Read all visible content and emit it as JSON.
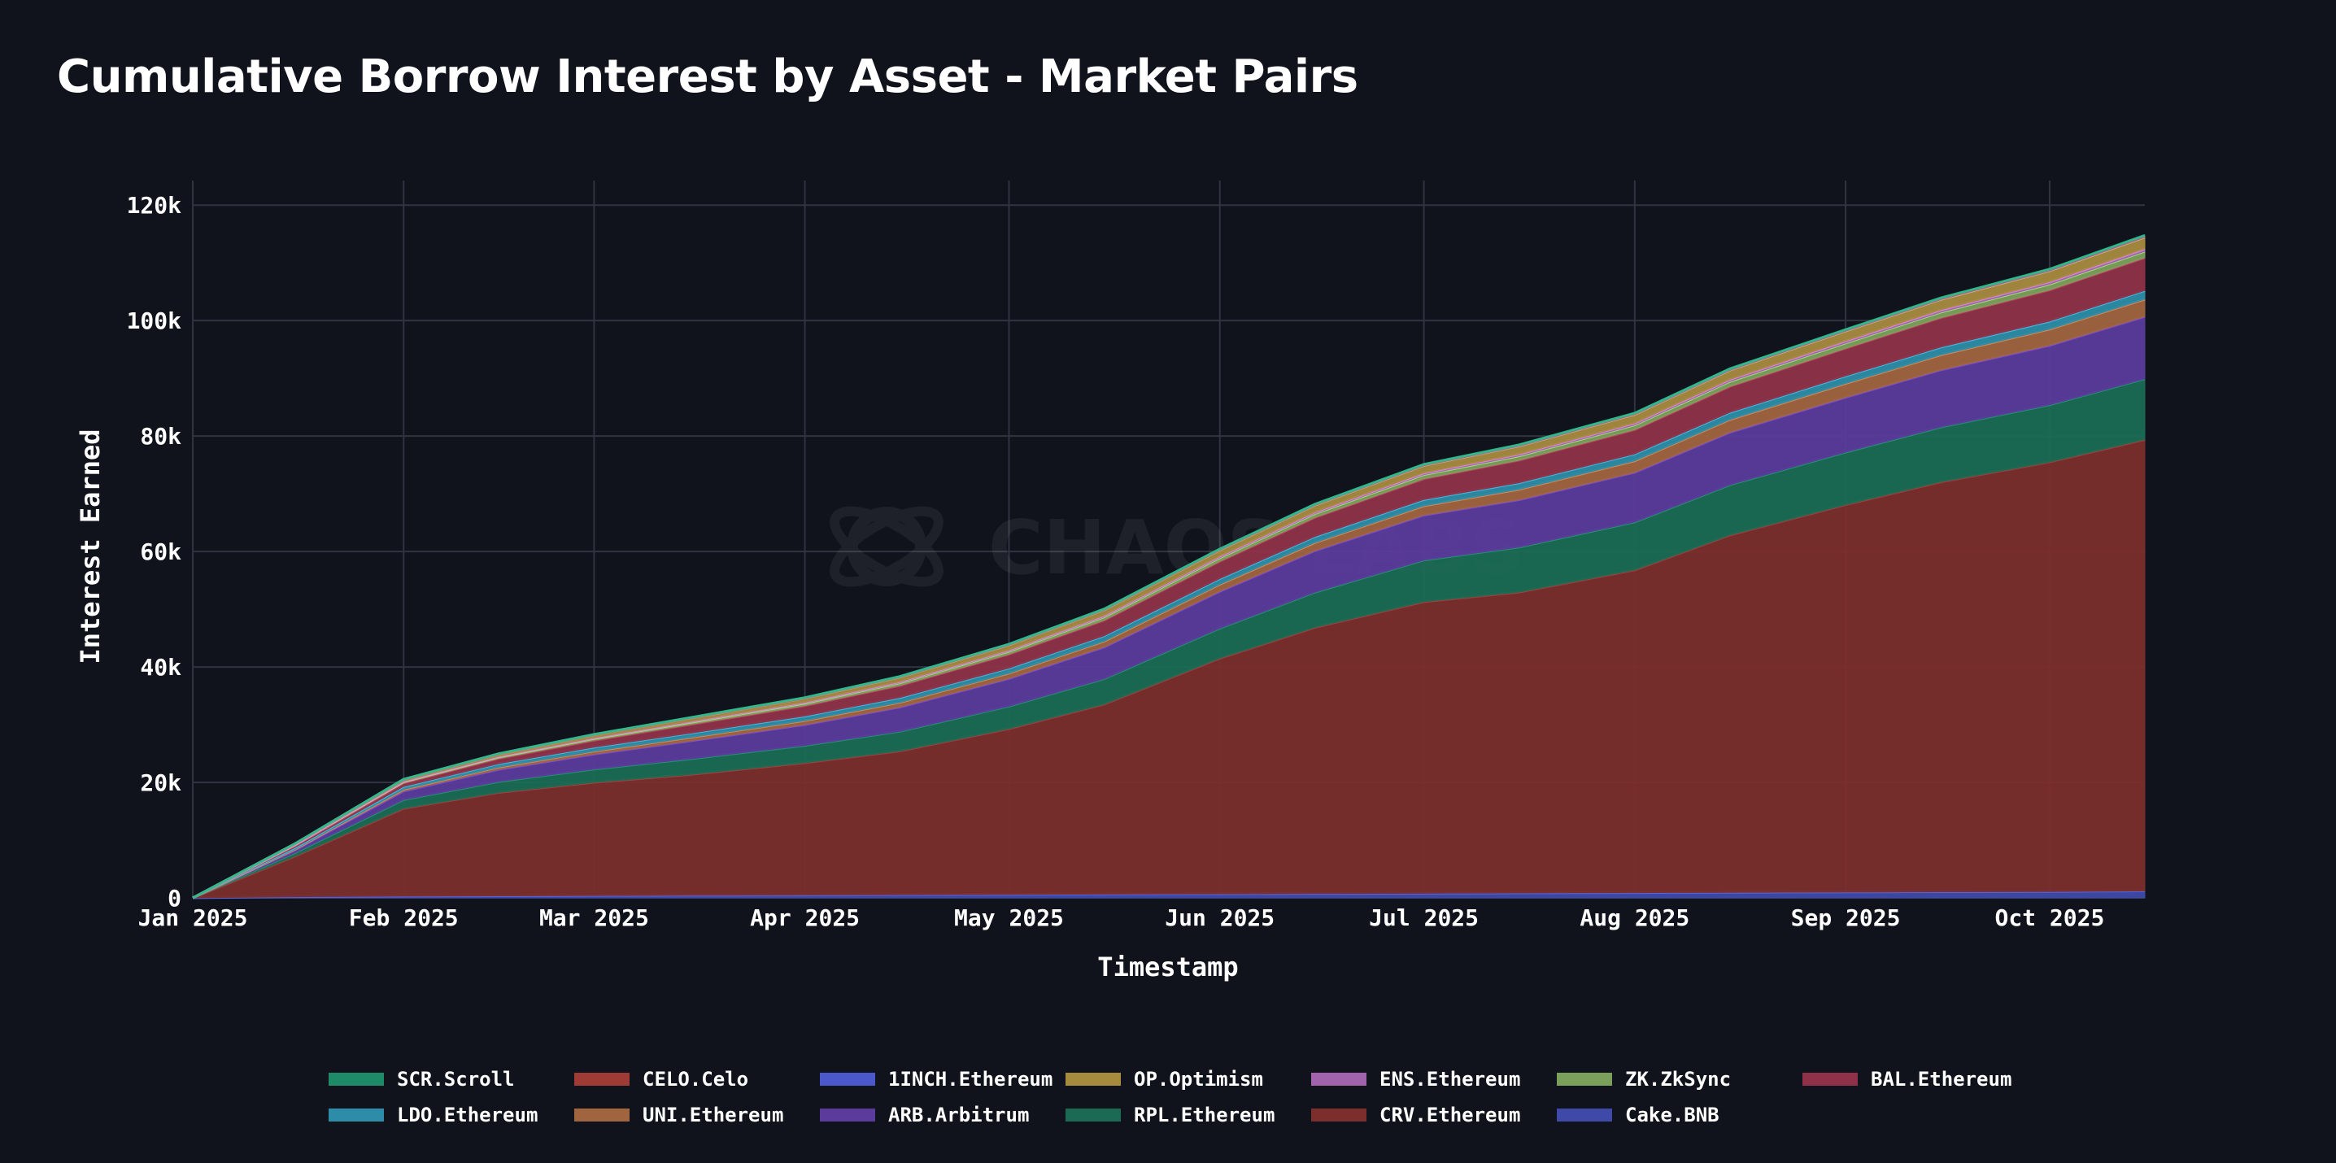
{
  "title": "Cumulative Borrow Interest by Asset - Market Pairs",
  "chart_data": {
    "type": "area",
    "stacked": true,
    "title": "Cumulative Borrow Interest by Asset - Market Pairs",
    "xlabel": "Timestamp",
    "ylabel": "Interest Earned",
    "x": [
      "2025-01-01",
      "2025-01-16",
      "2025-02-01",
      "2025-02-15",
      "2025-03-01",
      "2025-03-15",
      "2025-04-01",
      "2025-04-15",
      "2025-05-01",
      "2025-05-15",
      "2025-06-01",
      "2025-06-15",
      "2025-07-01",
      "2025-07-15",
      "2025-08-01",
      "2025-08-15",
      "2025-09-01",
      "2025-09-15",
      "2025-10-01",
      "2025-10-15"
    ],
    "xticks": [
      "Jan 2025",
      "Feb 2025",
      "Mar 2025",
      "Apr 2025",
      "May 2025",
      "Jun 2025",
      "Jul 2025",
      "Aug 2025",
      "Sep 2025",
      "Oct 2025"
    ],
    "yticks": [
      "0",
      "20k",
      "40k",
      "60k",
      "80k",
      "100k",
      "120k"
    ],
    "ylim": [
      0,
      122000
    ],
    "grid": true,
    "legend_position": "bottom",
    "series": [
      {
        "name": "Cake.BNB",
        "color": "#3f4aa8",
        "values": [
          0,
          200,
          300,
          350,
          400,
          450,
          500,
          550,
          600,
          650,
          700,
          750,
          800,
          850,
          900,
          950,
          1000,
          1050,
          1100,
          1200
        ]
      },
      {
        "name": "CRV.Ethereum",
        "color": "#7b2e2c",
        "values": [
          0,
          7000,
          15200,
          17900,
          19600,
          20900,
          22900,
          24900,
          28700,
          32900,
          40800,
          46100,
          50500,
          52100,
          55900,
          61900,
          67100,
          71000,
          74400,
          78200
        ]
      },
      {
        "name": "RPL.Ethereum",
        "color": "#1b6b54",
        "values": [
          0,
          600,
          1500,
          1900,
          2300,
          2700,
          3000,
          3400,
          3900,
          4400,
          5200,
          6100,
          7200,
          7800,
          8300,
          8700,
          9100,
          9500,
          9900,
          10500
        ]
      },
      {
        "name": "ARB.Arbitrum",
        "color": "#5b3b9c",
        "values": [
          0,
          500,
          1500,
          2100,
          2600,
          3100,
          3600,
          4200,
          4800,
          5500,
          6400,
          7200,
          7800,
          8200,
          8600,
          9100,
          9500,
          9900,
          10300,
          10800
        ]
      },
      {
        "name": "UNI.Ethereum",
        "color": "#a0643f",
        "values": [
          0,
          100,
          300,
          400,
          500,
          600,
          700,
          800,
          900,
          1000,
          1200,
          1400,
          1600,
          1800,
          2000,
          2200,
          2400,
          2600,
          2800,
          3000
        ]
      },
      {
        "name": "LDO.Ethereum",
        "color": "#2d8da8",
        "values": [
          0,
          300,
          500,
          600,
          700,
          750,
          800,
          850,
          900,
          950,
          1000,
          1050,
          1100,
          1150,
          1200,
          1250,
          1300,
          1350,
          1400,
          1500
        ]
      },
      {
        "name": "BAL.Ethereum",
        "color": "#8f3149",
        "values": [
          0,
          300,
          600,
          900,
          1200,
          1500,
          1800,
          2100,
          2400,
          2700,
          3000,
          3300,
          3600,
          3900,
          4200,
          4500,
          4800,
          5100,
          5400,
          5700
        ]
      },
      {
        "name": "ZK.ZkSync",
        "color": "#7ba05b",
        "values": [
          0,
          150,
          200,
          250,
          300,
          350,
          400,
          450,
          500,
          550,
          600,
          650,
          700,
          750,
          800,
          850,
          900,
          950,
          1000,
          1100
        ]
      },
      {
        "name": "ENS.Ethereum",
        "color": "#a263ad",
        "values": [
          0,
          50,
          100,
          120,
          140,
          160,
          180,
          200,
          220,
          240,
          260,
          280,
          300,
          320,
          340,
          360,
          380,
          400,
          420,
          450
        ]
      },
      {
        "name": "OP.Optimism",
        "color": "#a68a3e",
        "values": [
          0,
          150,
          300,
          400,
          500,
          600,
          700,
          800,
          900,
          1000,
          1100,
          1200,
          1300,
          1400,
          1500,
          1600,
          1700,
          1800,
          1900,
          2000
        ]
      },
      {
        "name": "1INCH.Ethereum",
        "color": "#4a58c9",
        "values": [
          0,
          10,
          20,
          25,
          30,
          35,
          40,
          45,
          50,
          55,
          60,
          65,
          70,
          75,
          80,
          85,
          90,
          95,
          100,
          110
        ]
      },
      {
        "name": "CELO.Celo",
        "color": "#9e3b34",
        "values": [
          0,
          10,
          20,
          25,
          30,
          35,
          40,
          45,
          50,
          55,
          60,
          65,
          70,
          75,
          80,
          85,
          90,
          95,
          100,
          110
        ]
      },
      {
        "name": "SCR.Scroll",
        "color": "#1f8a67",
        "values": [
          0,
          10,
          20,
          25,
          30,
          35,
          40,
          45,
          50,
          55,
          60,
          65,
          70,
          75,
          80,
          85,
          90,
          95,
          100,
          110
        ]
      }
    ]
  },
  "legend": {
    "row1": [
      {
        "label": "SCR.Scroll",
        "color": "#1f8a67"
      },
      {
        "label": "CELO.Celo",
        "color": "#9e3b34"
      },
      {
        "label": "1INCH.Ethereum",
        "color": "#4a58c9"
      },
      {
        "label": "OP.Optimism",
        "color": "#a68a3e"
      },
      {
        "label": "ENS.Ethereum",
        "color": "#a263ad"
      },
      {
        "label": "ZK.ZkSync",
        "color": "#7ba05b"
      },
      {
        "label": "BAL.Ethereum",
        "color": "#8f3149"
      }
    ],
    "row2": [
      {
        "label": "LDO.Ethereum",
        "color": "#2d8da8"
      },
      {
        "label": "UNI.Ethereum",
        "color": "#a0643f"
      },
      {
        "label": "ARB.Arbitrum",
        "color": "#5b3b9c"
      },
      {
        "label": "RPL.Ethereum",
        "color": "#1b6b54"
      },
      {
        "label": "CRV.Ethereum",
        "color": "#7b2e2c"
      },
      {
        "label": "Cake.BNB",
        "color": "#3f4aa8"
      }
    ]
  },
  "watermark": "CHAOS LABS"
}
